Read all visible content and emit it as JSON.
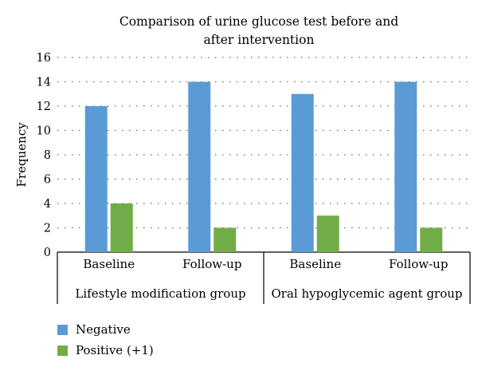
{
  "chart_data": {
    "type": "bar",
    "title": "Comparison of urine glucose test before and after intervention",
    "ylabel": "Frequency",
    "ylim": [
      0,
      16
    ],
    "yticks": [
      0,
      2,
      4,
      6,
      8,
      10,
      12,
      14,
      16
    ],
    "grid": "dotted horizontal",
    "groups": [
      "Lifestyle modification group",
      "Oral hypoglycemic agent group"
    ],
    "categories": [
      "Baseline",
      "Follow-up",
      "Baseline",
      "Follow-up"
    ],
    "series": [
      {
        "name": "Negative",
        "color": "#5b9bd5",
        "values": [
          12,
          14,
          13,
          14
        ]
      },
      {
        "name": "Positive (+1)",
        "color": "#70ad47",
        "values": [
          4,
          2,
          3,
          2
        ]
      }
    ],
    "legend_position": "bottom-left"
  }
}
